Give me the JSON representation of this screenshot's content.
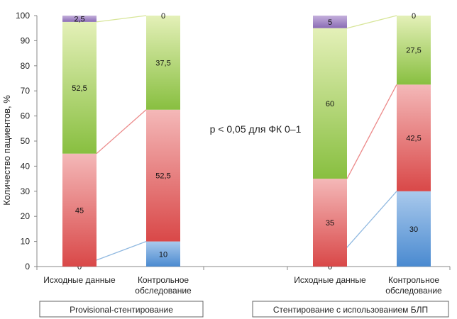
{
  "chart_data": {
    "type": "bar",
    "stacked": true,
    "ylabel": "Количество пациентов, %",
    "ylim": [
      0,
      100
    ],
    "yticks": [
      0,
      10,
      20,
      30,
      40,
      50,
      60,
      70,
      80,
      90,
      100
    ],
    "annotation": "p < 0,05 для ФК 0–1",
    "groups": [
      {
        "label": "Provisional-стентирование",
        "categories": [
          {
            "label_lines": [
              "Исходные данные"
            ],
            "values": [
              0,
              45,
              52.5,
              2.5
            ],
            "labels": [
              "0",
              "45",
              "52,5",
              "2,5"
            ]
          },
          {
            "label_lines": [
              "Контрольное",
              "обследование"
            ],
            "values": [
              10,
              52.5,
              37.5,
              0
            ],
            "labels": [
              "10",
              "52,5",
              "37,5",
              "0"
            ]
          }
        ]
      },
      {
        "label": "Стентирование с использованием БЛП",
        "categories": [
          {
            "label_lines": [
              "Исходные данные"
            ],
            "values": [
              0,
              35,
              60,
              5
            ],
            "labels": [
              "0",
              "35",
              "60",
              "5"
            ]
          },
          {
            "label_lines": [
              "Контрольное",
              "обследование"
            ],
            "values": [
              30,
              42.5,
              27.5,
              0
            ],
            "labels": [
              "30",
              "42,5",
              "27,5",
              "0"
            ]
          }
        ]
      }
    ],
    "series_colors": [
      "#5b9bd5",
      "#e06666",
      "#a8cf5a",
      "#9b7cc0"
    ],
    "series_gradients": [
      [
        "#a9c9ec",
        "#4a8ad0"
      ],
      [
        "#f4b8b8",
        "#d94848"
      ],
      [
        "#e4f0b8",
        "#88bf40"
      ],
      [
        "#c4b0dc",
        "#8a6bb4"
      ]
    ],
    "connector_colors": [
      "#8fb8e0",
      "#ec8a8a",
      "#d8e69a",
      "#b8a0d8"
    ]
  }
}
